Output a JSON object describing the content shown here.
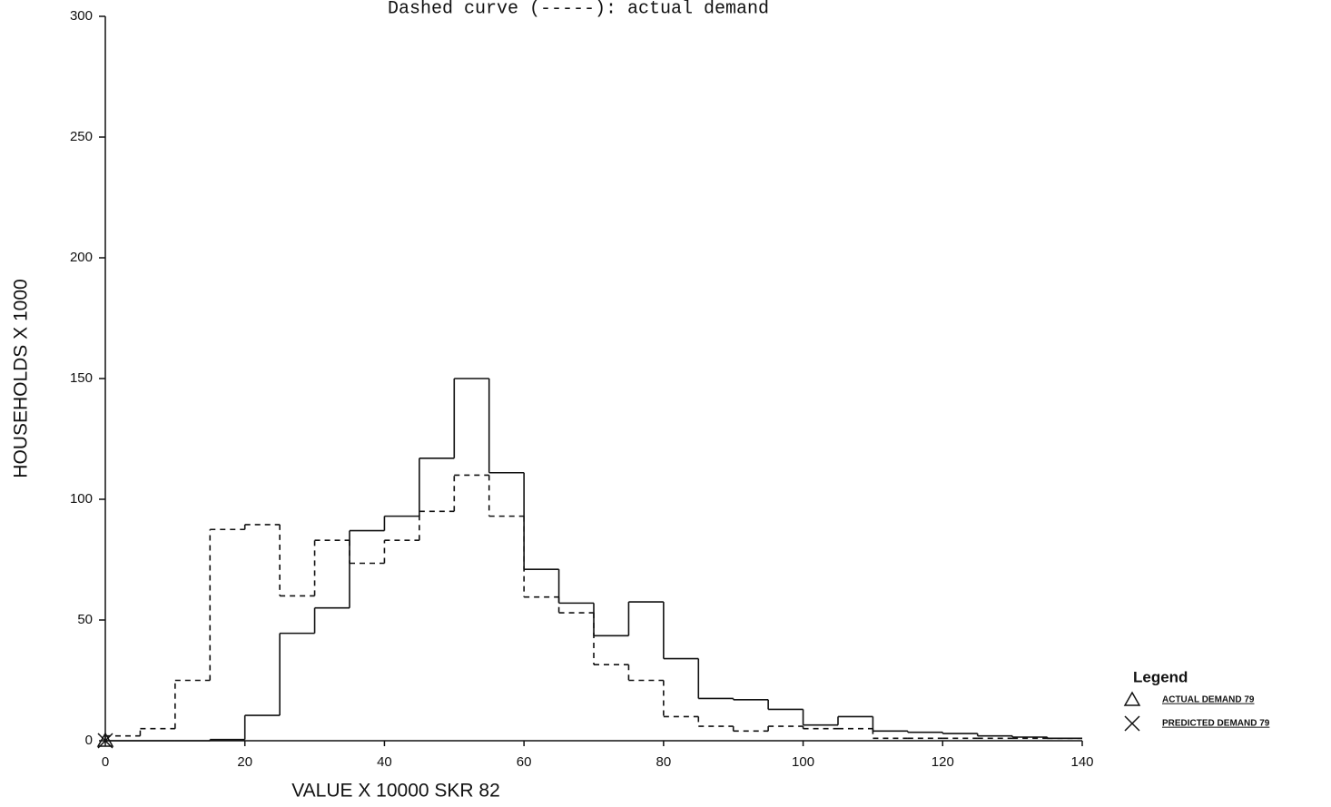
{
  "chart_data": {
    "type": "histogram",
    "title": "Dashed curve (-----): actual demand",
    "x_label": "VALUE X 10000 SKR 82",
    "y_label": "HOUSEHOLDS X 1000",
    "legend_title": "Legend",
    "legend_position": "bottom-right",
    "bins": [
      0,
      5,
      10,
      15,
      20,
      25,
      30,
      35,
      40,
      45,
      50,
      55,
      60,
      65,
      70,
      75,
      80,
      85,
      90,
      95,
      100,
      105,
      110,
      115,
      120,
      125,
      130,
      135,
      140
    ],
    "series": [
      {
        "name": "ACTUAL DEMAND 79",
        "color": "#111111",
        "dash": "dashed",
        "marker": "triangle",
        "values": [
          2,
          5,
          25,
          87.5,
          89.5,
          60,
          83,
          73.5,
          83,
          95,
          110,
          93,
          59.5,
          53,
          31.5,
          25,
          10,
          6,
          4,
          6,
          5,
          5,
          1,
          1,
          1,
          1,
          1,
          1
        ]
      },
      {
        "name": "PREDICTED DEMAND 79",
        "color": "#111111",
        "dash": "solid",
        "marker": "x",
        "values": [
          0,
          0,
          0,
          0.5,
          10.5,
          44.5,
          55,
          87,
          93,
          117,
          150,
          111,
          71,
          57,
          43.5,
          57.5,
          34,
          17.5,
          17,
          13,
          6.5,
          10,
          4,
          3.5,
          3,
          2,
          1.5,
          1
        ]
      }
    ],
    "xlim": [
      0,
      140
    ],
    "xticks": [
      0,
      20,
      40,
      60,
      80,
      100,
      120,
      140
    ],
    "ylim": [
      0,
      300
    ],
    "yticks": [
      0,
      50,
      100,
      150,
      200,
      250,
      300
    ]
  }
}
